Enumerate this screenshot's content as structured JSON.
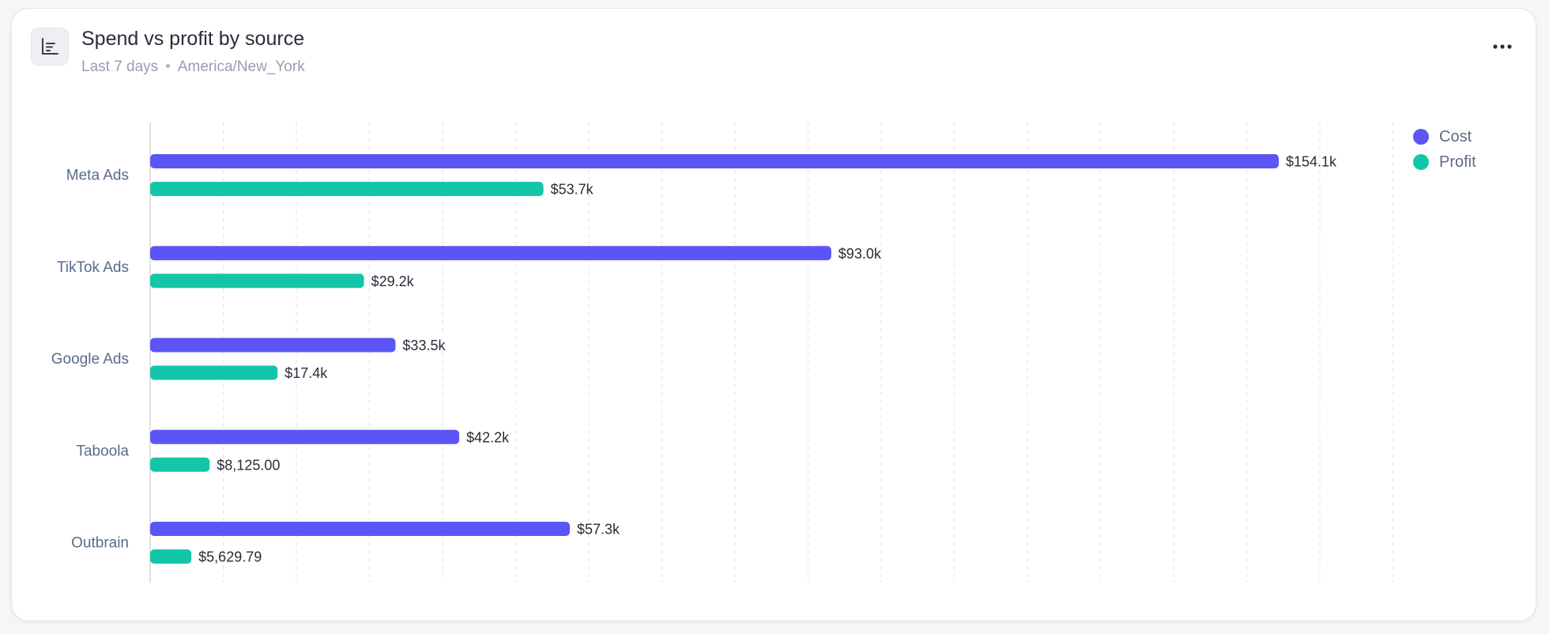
{
  "header": {
    "title": "Spend vs profit by source",
    "range": "Last 7 days",
    "separator": "•",
    "timezone": "America/New_York",
    "icon": "bar-chart-icon",
    "menu_icon": "more-horizontal-icon"
  },
  "colors": {
    "cost": "#5b55f5",
    "profit": "#14c6a8",
    "grid": "#e6e7ec",
    "axis": "#d4d6dd"
  },
  "chart_data": {
    "type": "bar",
    "orientation": "horizontal",
    "categories": [
      "Meta Ads",
      "TikTok Ads",
      "Google Ads",
      "Taboola",
      "Outbrain"
    ],
    "series": [
      {
        "name": "Cost",
        "values": [
          154100,
          93000,
          33500,
          42200,
          57300
        ],
        "labels": [
          "$154.1k",
          "$93.0k",
          "$33.5k",
          "$42.2k",
          "$57.3k"
        ]
      },
      {
        "name": "Profit",
        "values": [
          53700,
          29200,
          17400,
          8125,
          5629.79
        ],
        "labels": [
          "$53.7k",
          "$29.2k",
          "$17.4k",
          "$8,125.00",
          "$5,629.79"
        ]
      }
    ],
    "xlim": [
      0,
      170000
    ],
    "grid": true,
    "legend_position": "top-right",
    "title": "Spend vs profit by source",
    "xlabel": "",
    "ylabel": ""
  }
}
